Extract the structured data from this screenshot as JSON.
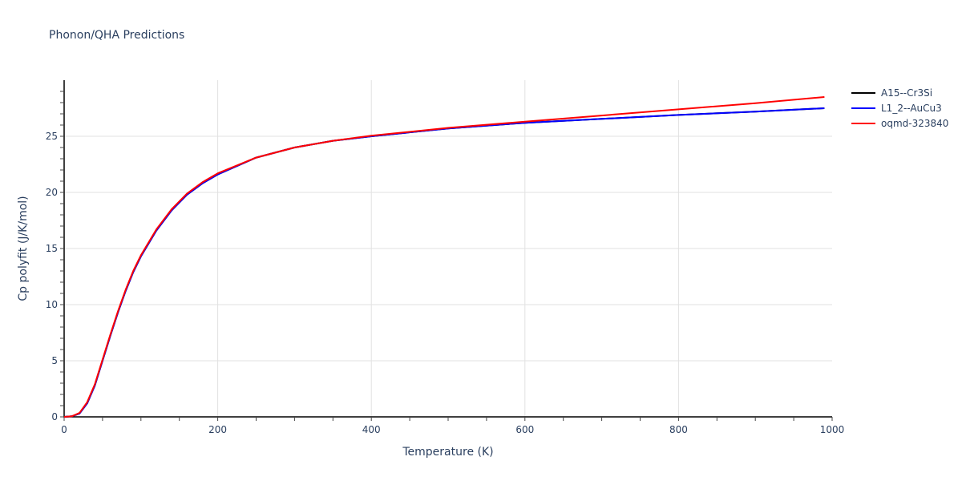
{
  "title": "Phonon/QHA Predictions",
  "legend": {
    "items": [
      {
        "label": "A15--Cr3Si",
        "color": "#000000"
      },
      {
        "label": "L1_2--AuCu3",
        "color": "#0000ff"
      },
      {
        "label": "oqmd-323840",
        "color": "#ff0000"
      }
    ]
  },
  "axes": {
    "x": {
      "title": "Temperature (K)",
      "ticks": [
        "0",
        "200",
        "400",
        "600",
        "800",
        "1000"
      ]
    },
    "y": {
      "title": "Cp polyfit (J/K/mol)",
      "ticks": [
        "0",
        "5",
        "10",
        "15",
        "20",
        "25"
      ]
    }
  },
  "chart_data": {
    "type": "line",
    "title": "Phonon/QHA Predictions",
    "xlabel": "Temperature (K)",
    "ylabel": "Cp polyfit (J/K/mol)",
    "xlim": [
      0,
      1000
    ],
    "ylim": [
      0,
      30
    ],
    "grid": true,
    "legend_position": "right-top",
    "x": [
      0,
      10,
      20,
      30,
      40,
      50,
      60,
      70,
      80,
      90,
      100,
      120,
      140,
      160,
      180,
      200,
      250,
      300,
      350,
      400,
      500,
      600,
      700,
      800,
      900,
      990
    ],
    "series": [
      {
        "name": "A15--Cr3Si",
        "color": "#000000",
        "values": [
          0,
          0.05,
          0.3,
          1.2,
          2.8,
          5.0,
          7.2,
          9.3,
          11.2,
          12.9,
          14.3,
          16.6,
          18.4,
          19.8,
          20.8,
          21.6,
          23.1,
          24.0,
          24.6,
          25.0,
          25.7,
          26.2,
          26.55,
          26.9,
          27.2,
          27.5
        ]
      },
      {
        "name": "L1_2--AuCu3",
        "color": "#0000ff",
        "values": [
          0,
          0.05,
          0.3,
          1.2,
          2.8,
          5.0,
          7.2,
          9.3,
          11.2,
          12.9,
          14.3,
          16.6,
          18.4,
          19.8,
          20.8,
          21.6,
          23.1,
          24.0,
          24.6,
          25.0,
          25.7,
          26.2,
          26.55,
          26.9,
          27.2,
          27.5
        ]
      },
      {
        "name": "oqmd-323840",
        "color": "#ff0000",
        "values": [
          0,
          0.05,
          0.35,
          1.3,
          2.9,
          5.1,
          7.3,
          9.4,
          11.3,
          13.0,
          14.4,
          16.7,
          18.5,
          19.9,
          20.9,
          21.7,
          23.1,
          24.0,
          24.6,
          25.05,
          25.75,
          26.3,
          26.85,
          27.4,
          27.95,
          28.5
        ]
      }
    ]
  }
}
